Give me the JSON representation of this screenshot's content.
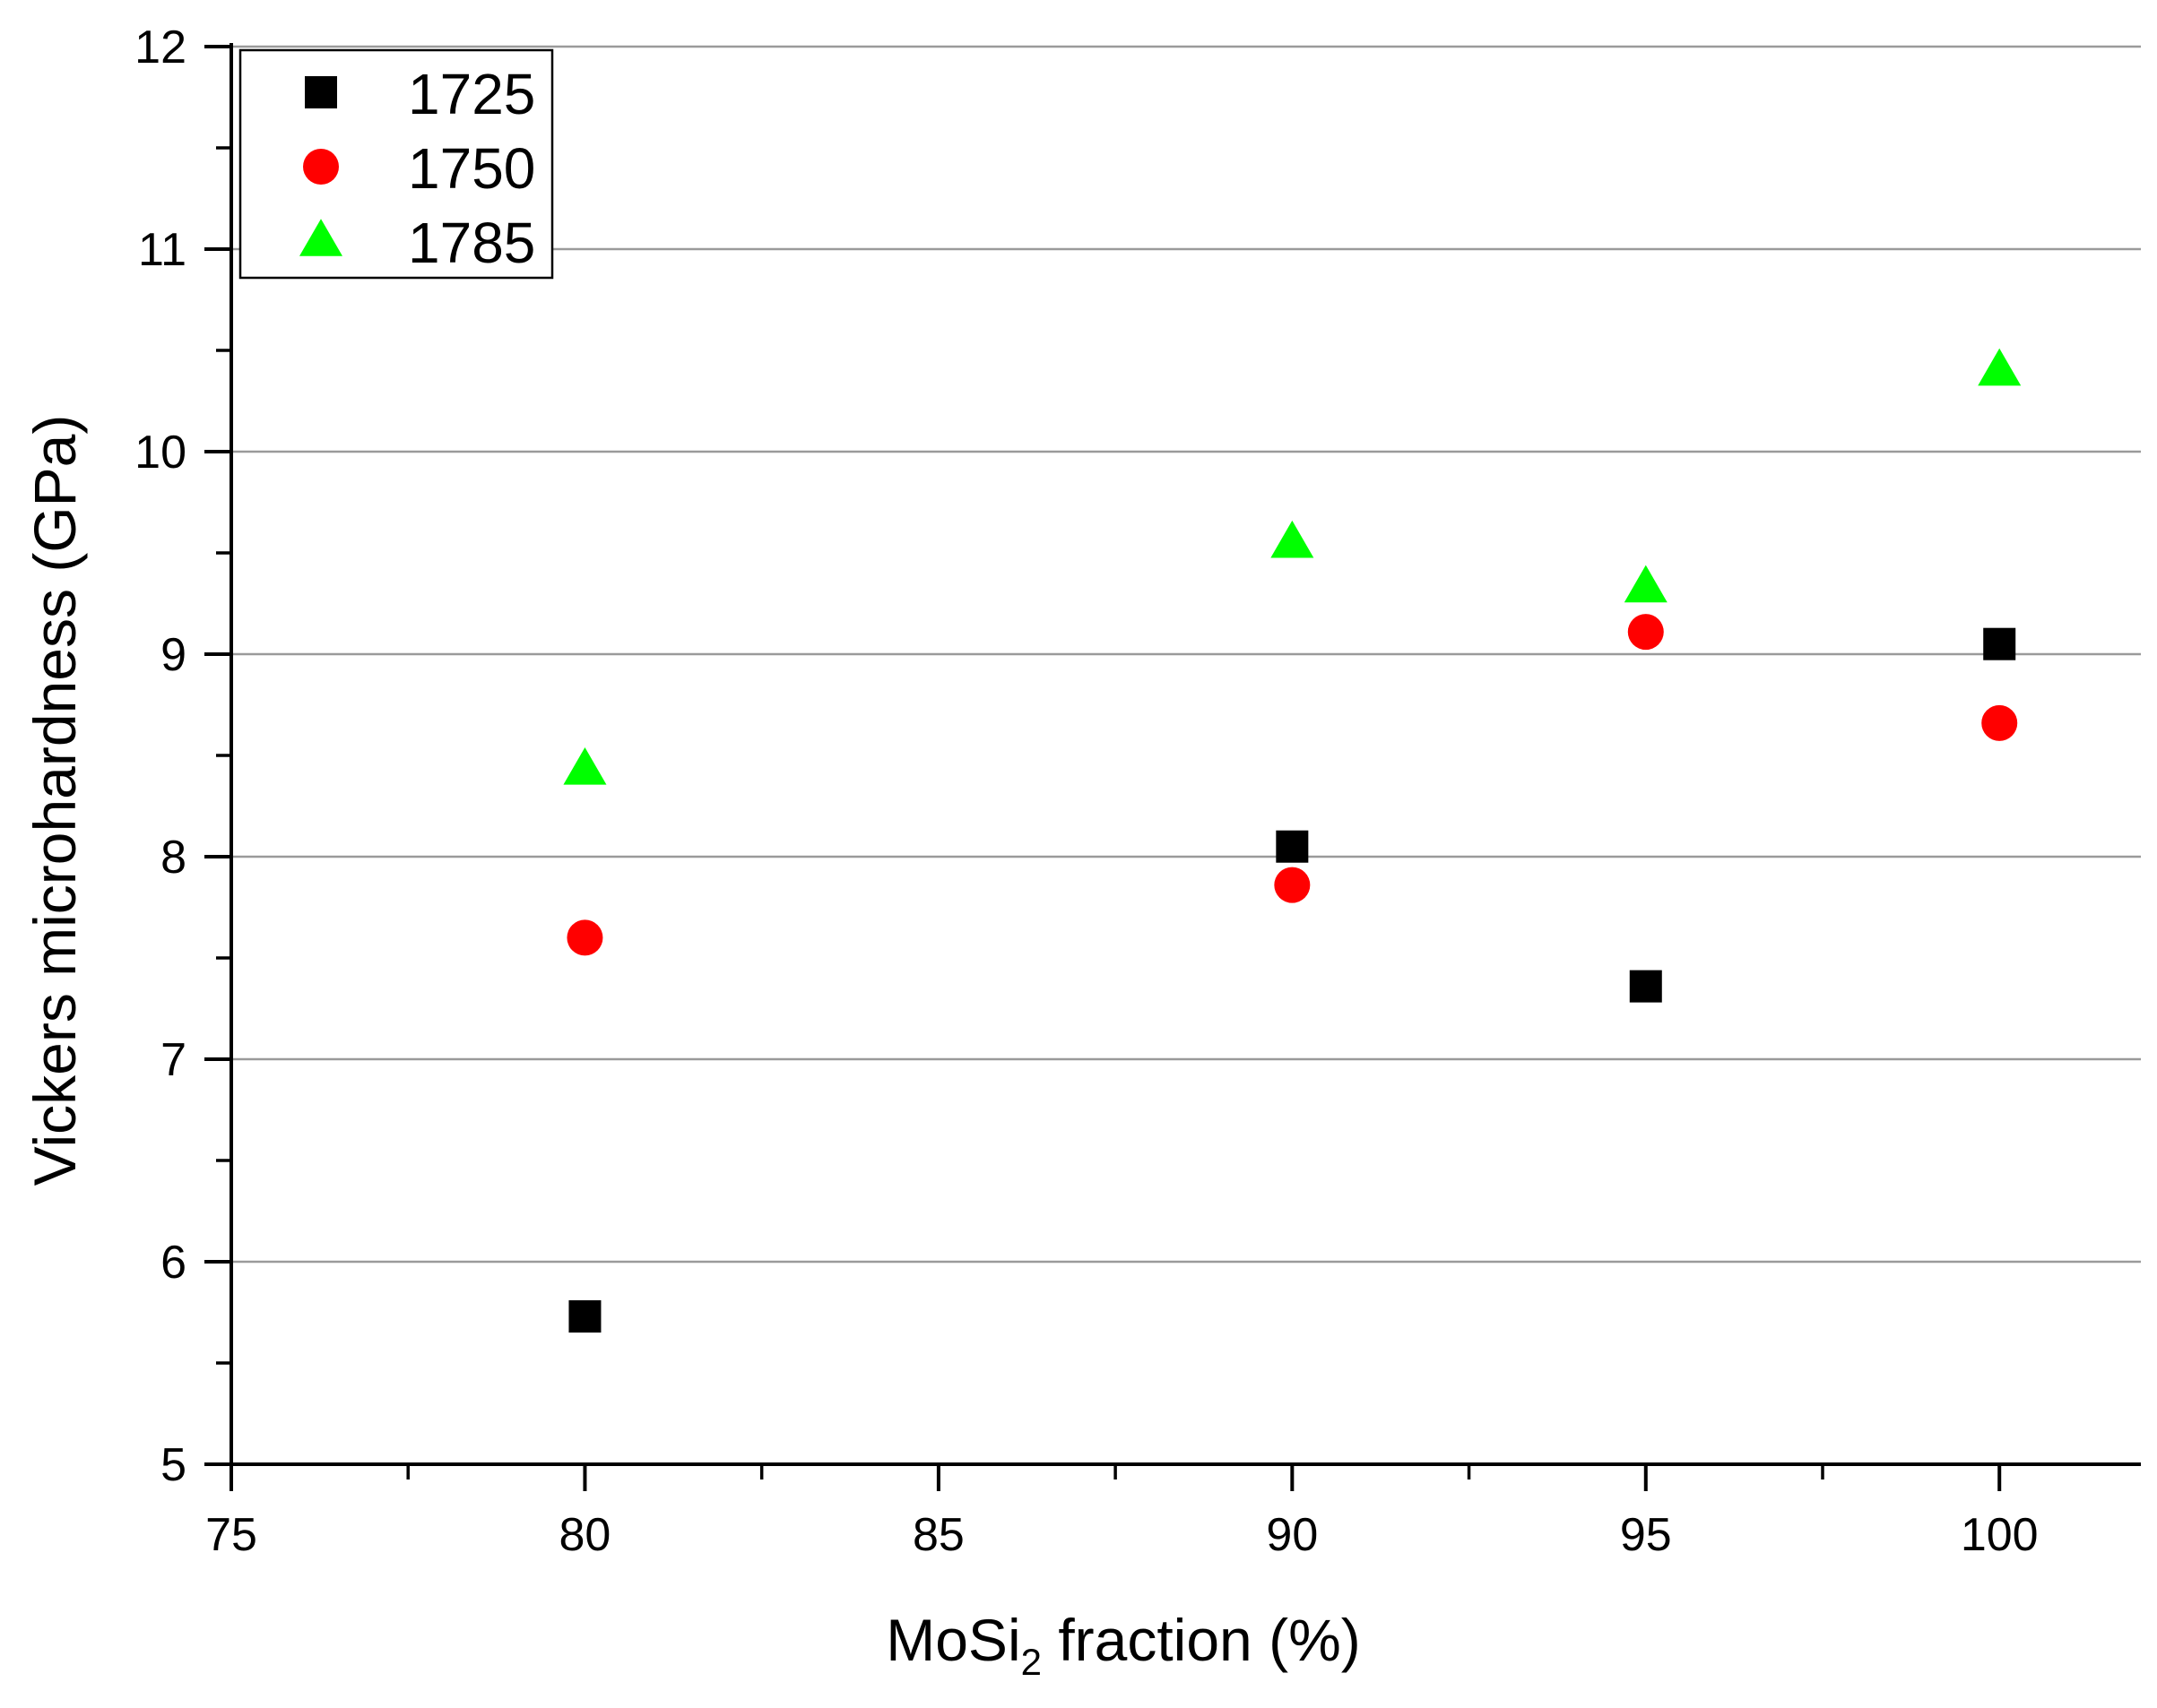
{
  "chart_data": {
    "type": "scatter",
    "title": "",
    "xlabel": {
      "main": "MoSi",
      "subscript": "2",
      "suffix": " fraction (%)"
    },
    "ylabel": "Vickers microhardness (GPa)",
    "xlim": [
      75,
      102
    ],
    "ylim": [
      5,
      12
    ],
    "x_ticks": [
      75,
      80,
      85,
      90,
      95,
      100
    ],
    "y_ticks": [
      5,
      6,
      7,
      8,
      9,
      10,
      11,
      12
    ],
    "x_minor_step": 2.5,
    "y_minor_step": 0.5,
    "grid": "horizontal major gridlines",
    "legend_position": "top-left",
    "series": [
      {
        "name": "1725",
        "marker": "square",
        "color": "#000000",
        "points": [
          {
            "x": 80,
            "y": 5.73
          },
          {
            "x": 90,
            "y": 8.05
          },
          {
            "x": 95,
            "y": 7.36
          },
          {
            "x": 100,
            "y": 9.05
          }
        ]
      },
      {
        "name": "1750",
        "marker": "circle",
        "color": "#ff0000",
        "points": [
          {
            "x": 80,
            "y": 7.6
          },
          {
            "x": 90,
            "y": 7.86
          },
          {
            "x": 95,
            "y": 9.11
          },
          {
            "x": 100,
            "y": 8.66
          }
        ]
      },
      {
        "name": "1785",
        "marker": "triangle",
        "color": "#00ff00",
        "points": [
          {
            "x": 80,
            "y": 8.43
          },
          {
            "x": 90,
            "y": 9.55
          },
          {
            "x": 95,
            "y": 9.33
          },
          {
            "x": 100,
            "y": 10.4
          }
        ]
      }
    ],
    "colors": {
      "axis": "#000000",
      "grid": "#9a9a9a",
      "legend_border": "#000000",
      "background": "#ffffff"
    }
  }
}
